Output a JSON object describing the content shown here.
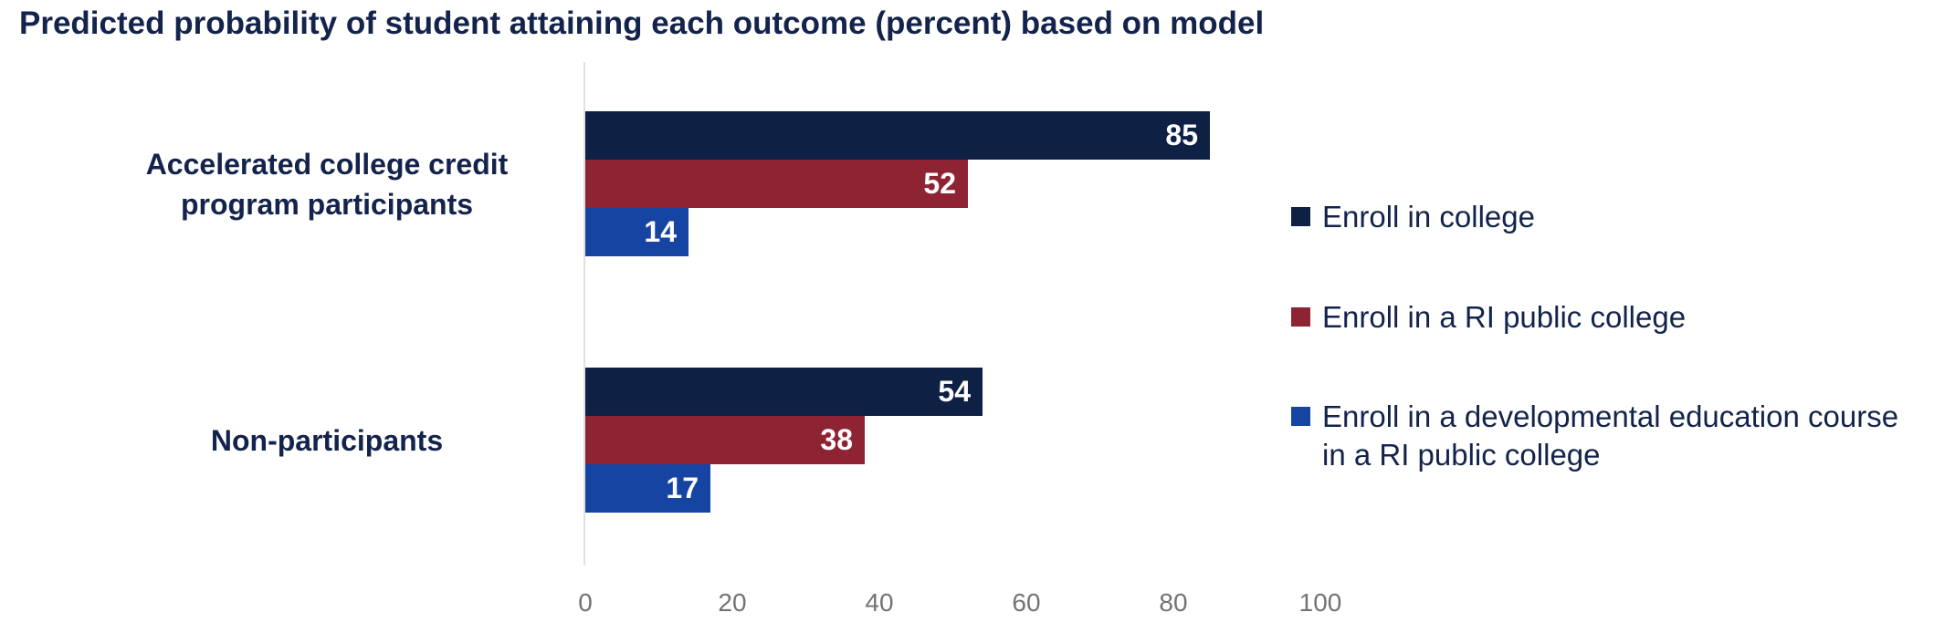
{
  "title": "Predicted probability of student attaining each outcome (percent) based on model",
  "chart_data": {
    "type": "bar",
    "orientation": "horizontal",
    "title": "Predicted probability of student attaining each outcome (percent) based on model",
    "categories": [
      "Accelerated college credit program participants",
      "Non-participants"
    ],
    "series": [
      {
        "name": "Enroll in college",
        "color": "#0E2144",
        "values": [
          85,
          54
        ]
      },
      {
        "name": "Enroll in a RI public college",
        "color": "#8E2433",
        "values": [
          52,
          38
        ]
      },
      {
        "name": "Enroll in a developmental education course in a RI public college",
        "color": "#1544A3",
        "values": [
          14,
          17
        ]
      }
    ],
    "x_ticks": [
      0,
      20,
      40,
      60,
      80,
      100
    ],
    "xlim": [
      0,
      100
    ],
    "grid": false,
    "legend_position": "right",
    "value_labels": "inside-end"
  },
  "colors": {
    "title_text": "#13234B",
    "category_text": "#13234B",
    "legend_text": "#13234B",
    "tick_text": "#737373",
    "axis_line": "#E0E0E0",
    "value_label_text": "#ffffff",
    "background": "#ffffff"
  }
}
